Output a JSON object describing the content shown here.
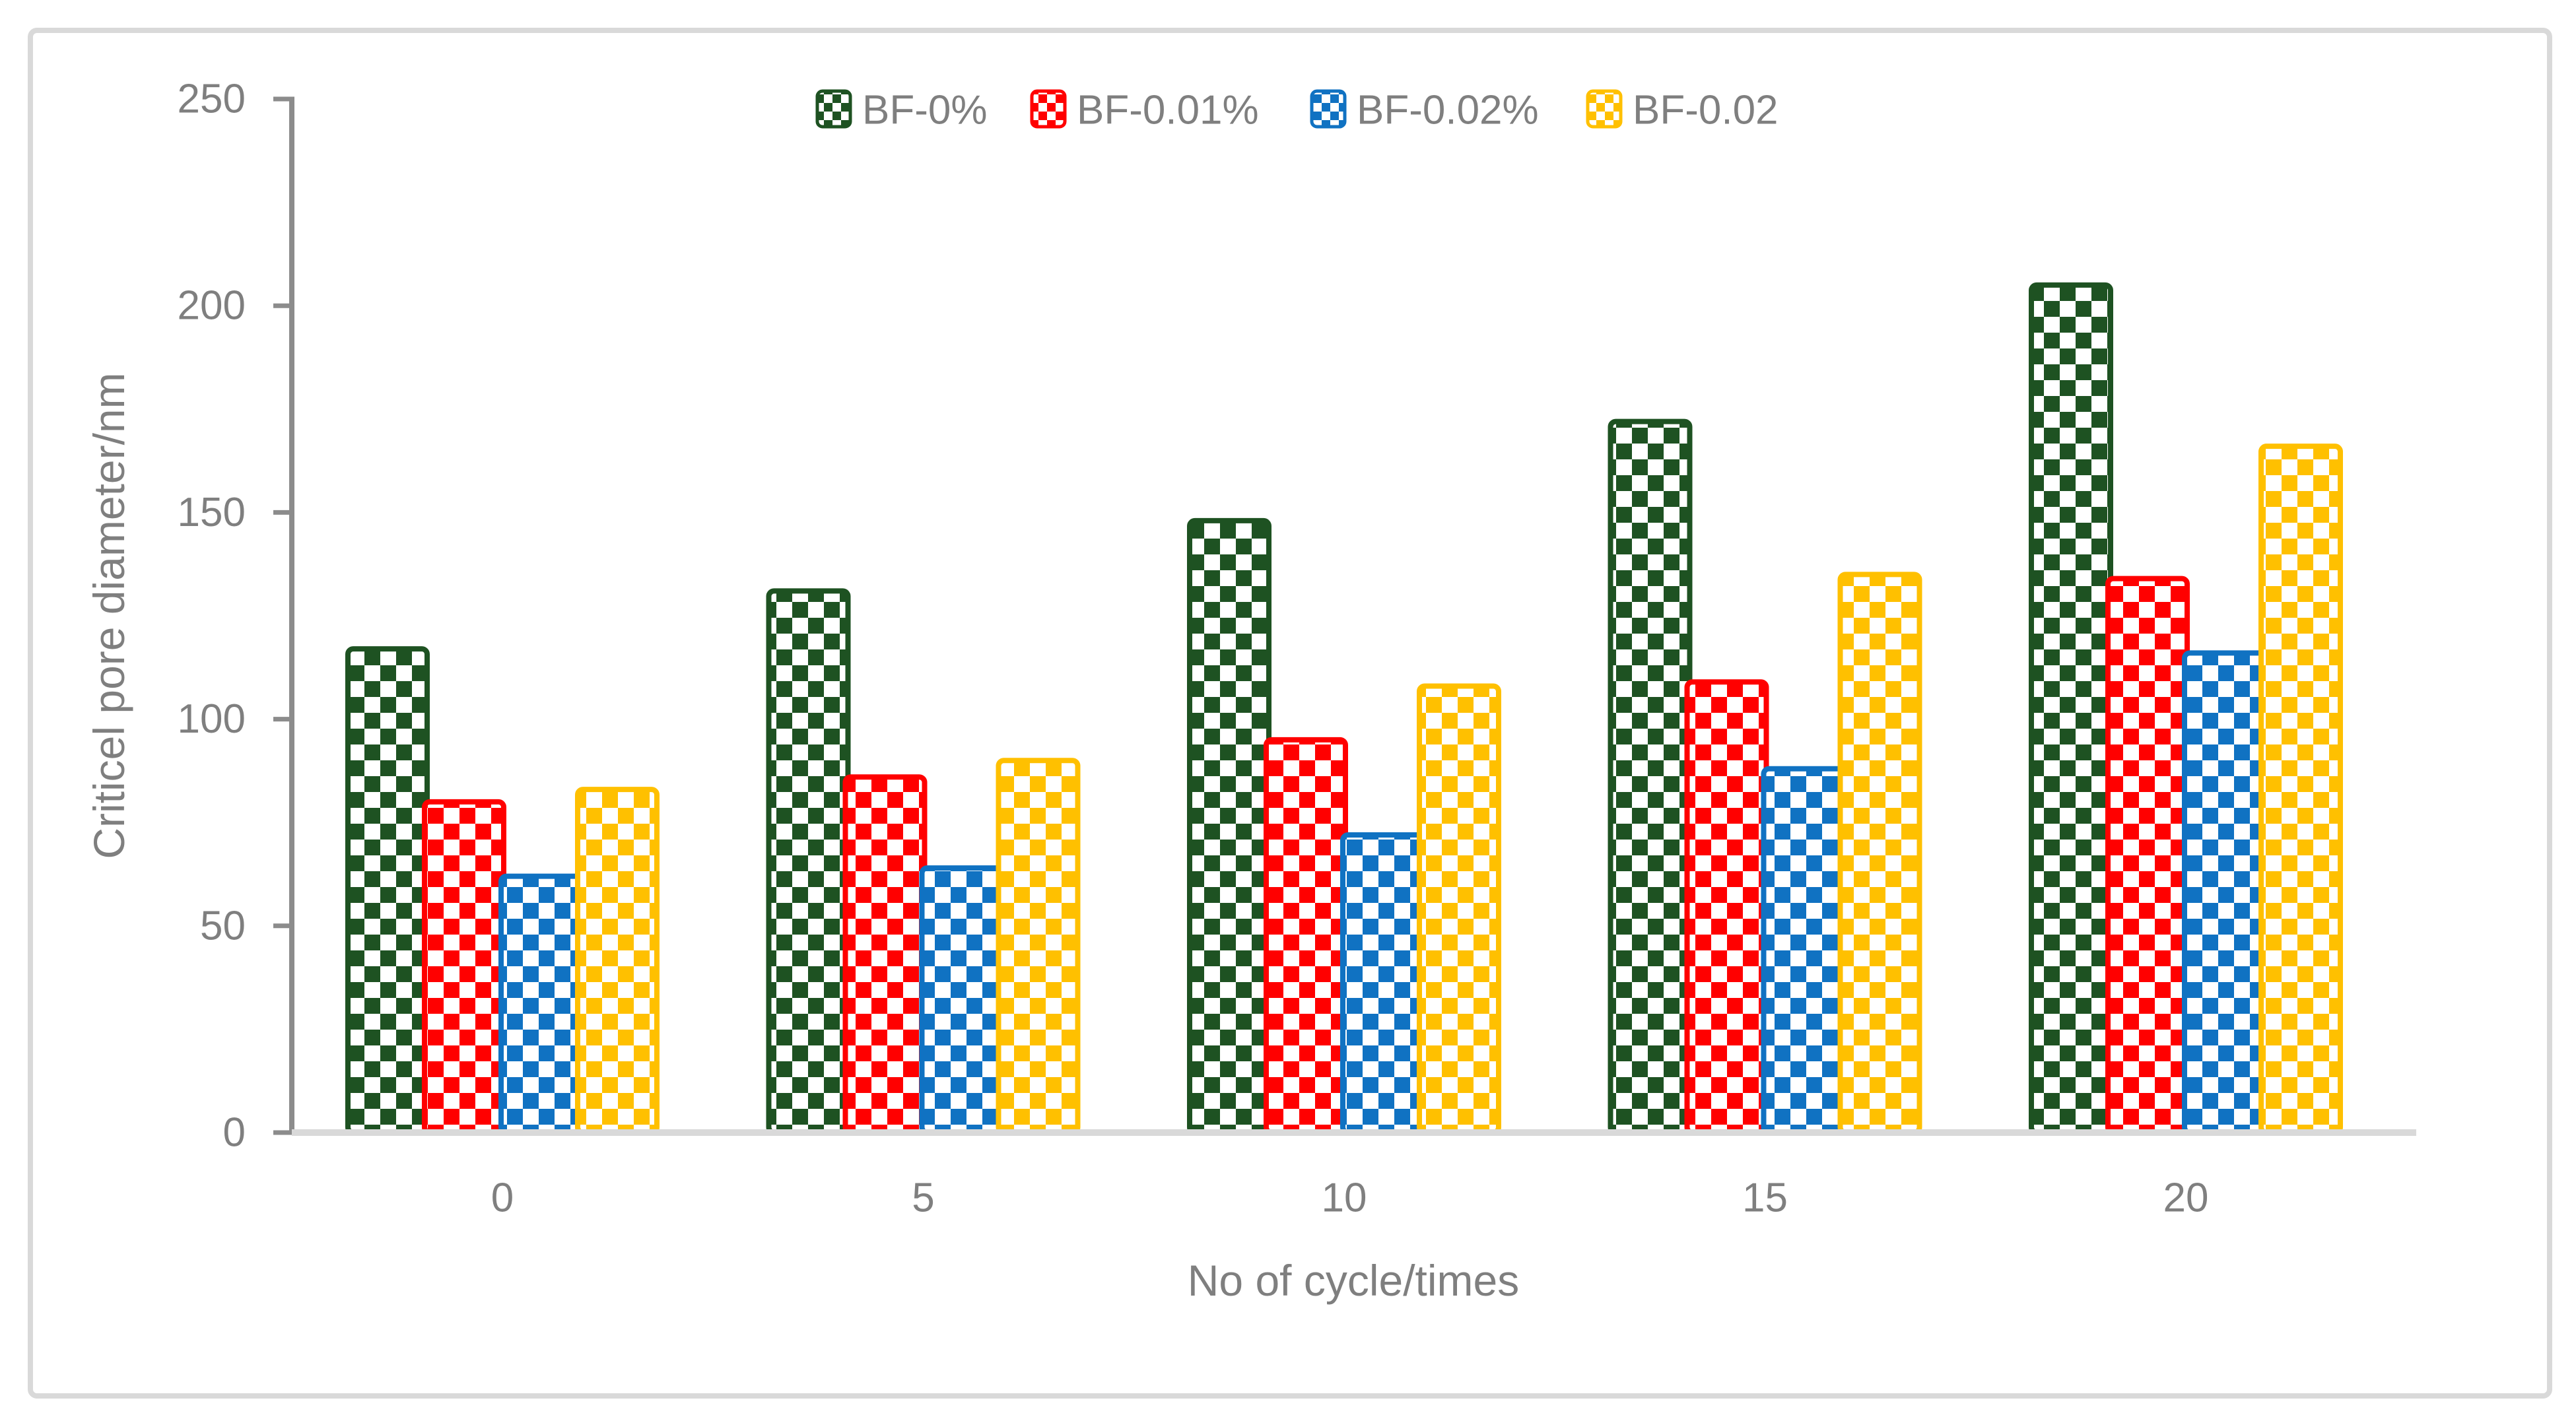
{
  "figure": {
    "background": "#FFFFFF",
    "frame_color": "#D9D9D9"
  },
  "chart_data": {
    "type": "bar",
    "title": "",
    "xlabel": "No of cycle/times",
    "ylabel": "Criticel pore diameter/nm",
    "categories": [
      "0",
      "5",
      "10",
      "15",
      "20"
    ],
    "series": [
      {
        "name": "BF-0%",
        "color": "#1E5222",
        "values": [
          117,
          131,
          148,
          172,
          205
        ]
      },
      {
        "name": "BF-0.01%",
        "color": "#FF0000",
        "values": [
          80,
          86,
          95,
          109,
          134
        ]
      },
      {
        "name": "BF-0.02%",
        "color": "#1072C2",
        "values": [
          62,
          64,
          72,
          88,
          116
        ]
      },
      {
        "name": "BF-0.02",
        "color": "#FFC000",
        "values": [
          83,
          90,
          108,
          135,
          166
        ]
      }
    ],
    "ylim": [
      0,
      250
    ],
    "yticks": [
      0,
      50,
      100,
      150,
      200,
      250
    ],
    "grid": false,
    "legend_position": "top-center",
    "bar_fill_style": "checkerboard",
    "axis_text_color": "#7F7F7F",
    "axis_line_color": "#8C8C8C",
    "baseline_color": "#D9D9D9"
  }
}
